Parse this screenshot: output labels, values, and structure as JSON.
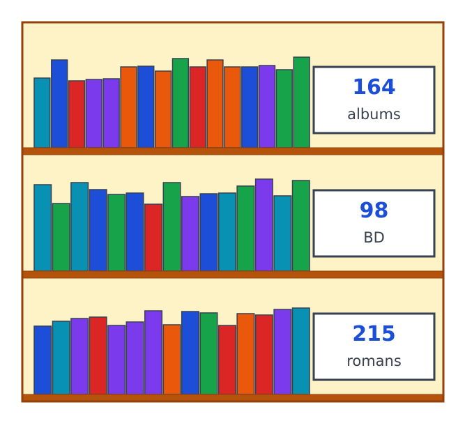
{
  "colors": {
    "frame": "#92400e",
    "plank": "#b45309",
    "back": "#fef3c7",
    "card_border": "#374151",
    "card_fill": "#ffffff",
    "number": "#1d4ed8",
    "label": "#374151",
    "book_outline": "#374151"
  },
  "shelves": [
    {
      "count": "164",
      "label": "albums",
      "books": [
        {
          "color": "#0891b2",
          "height": 100
        },
        {
          "color": "#1d4ed8",
          "height": 126
        },
        {
          "color": "#dc2626",
          "height": 96
        },
        {
          "color": "#7c3aed",
          "height": 98
        },
        {
          "color": "#7c3aed",
          "height": 99
        },
        {
          "color": "#ea580c",
          "height": 116
        },
        {
          "color": "#1d4ed8",
          "height": 117
        },
        {
          "color": "#ea580c",
          "height": 110
        },
        {
          "color": "#16a34a",
          "height": 128
        },
        {
          "color": "#dc2626",
          "height": 116
        },
        {
          "color": "#ea580c",
          "height": 126
        },
        {
          "color": "#ea580c",
          "height": 116
        },
        {
          "color": "#1d4ed8",
          "height": 116
        },
        {
          "color": "#7c3aed",
          "height": 118
        },
        {
          "color": "#16a34a",
          "height": 112
        },
        {
          "color": "#16a34a",
          "height": 130
        }
      ]
    },
    {
      "count": "98",
      "label": "BD",
      "books": [
        {
          "color": "#0891b2",
          "height": 124
        },
        {
          "color": "#16a34a",
          "height": 97
        },
        {
          "color": "#0891b2",
          "height": 127
        },
        {
          "color": "#1d4ed8",
          "height": 117
        },
        {
          "color": "#16a34a",
          "height": 110
        },
        {
          "color": "#1d4ed8",
          "height": 112
        },
        {
          "color": "#dc2626",
          "height": 96
        },
        {
          "color": "#16a34a",
          "height": 127
        },
        {
          "color": "#7c3aed",
          "height": 107
        },
        {
          "color": "#1d4ed8",
          "height": 111
        },
        {
          "color": "#0891b2",
          "height": 112
        },
        {
          "color": "#16a34a",
          "height": 122
        },
        {
          "color": "#7c3aed",
          "height": 132
        },
        {
          "color": "#0891b2",
          "height": 108
        },
        {
          "color": "#16a34a",
          "height": 130
        }
      ]
    },
    {
      "count": "215",
      "label": "romans",
      "books": [
        {
          "color": "#1d4ed8",
          "height": 98
        },
        {
          "color": "#0891b2",
          "height": 105
        },
        {
          "color": "#7c3aed",
          "height": 109
        },
        {
          "color": "#dc2626",
          "height": 111
        },
        {
          "color": "#7c3aed",
          "height": 99
        },
        {
          "color": "#7c3aed",
          "height": 104
        },
        {
          "color": "#7c3aed",
          "height": 120
        },
        {
          "color": "#ea580c",
          "height": 100
        },
        {
          "color": "#1d4ed8",
          "height": 119
        },
        {
          "color": "#16a34a",
          "height": 117
        },
        {
          "color": "#dc2626",
          "height": 99
        },
        {
          "color": "#ea580c",
          "height": 116
        },
        {
          "color": "#dc2626",
          "height": 114
        },
        {
          "color": "#7c3aed",
          "height": 122
        },
        {
          "color": "#0891b2",
          "height": 124
        }
      ]
    }
  ]
}
